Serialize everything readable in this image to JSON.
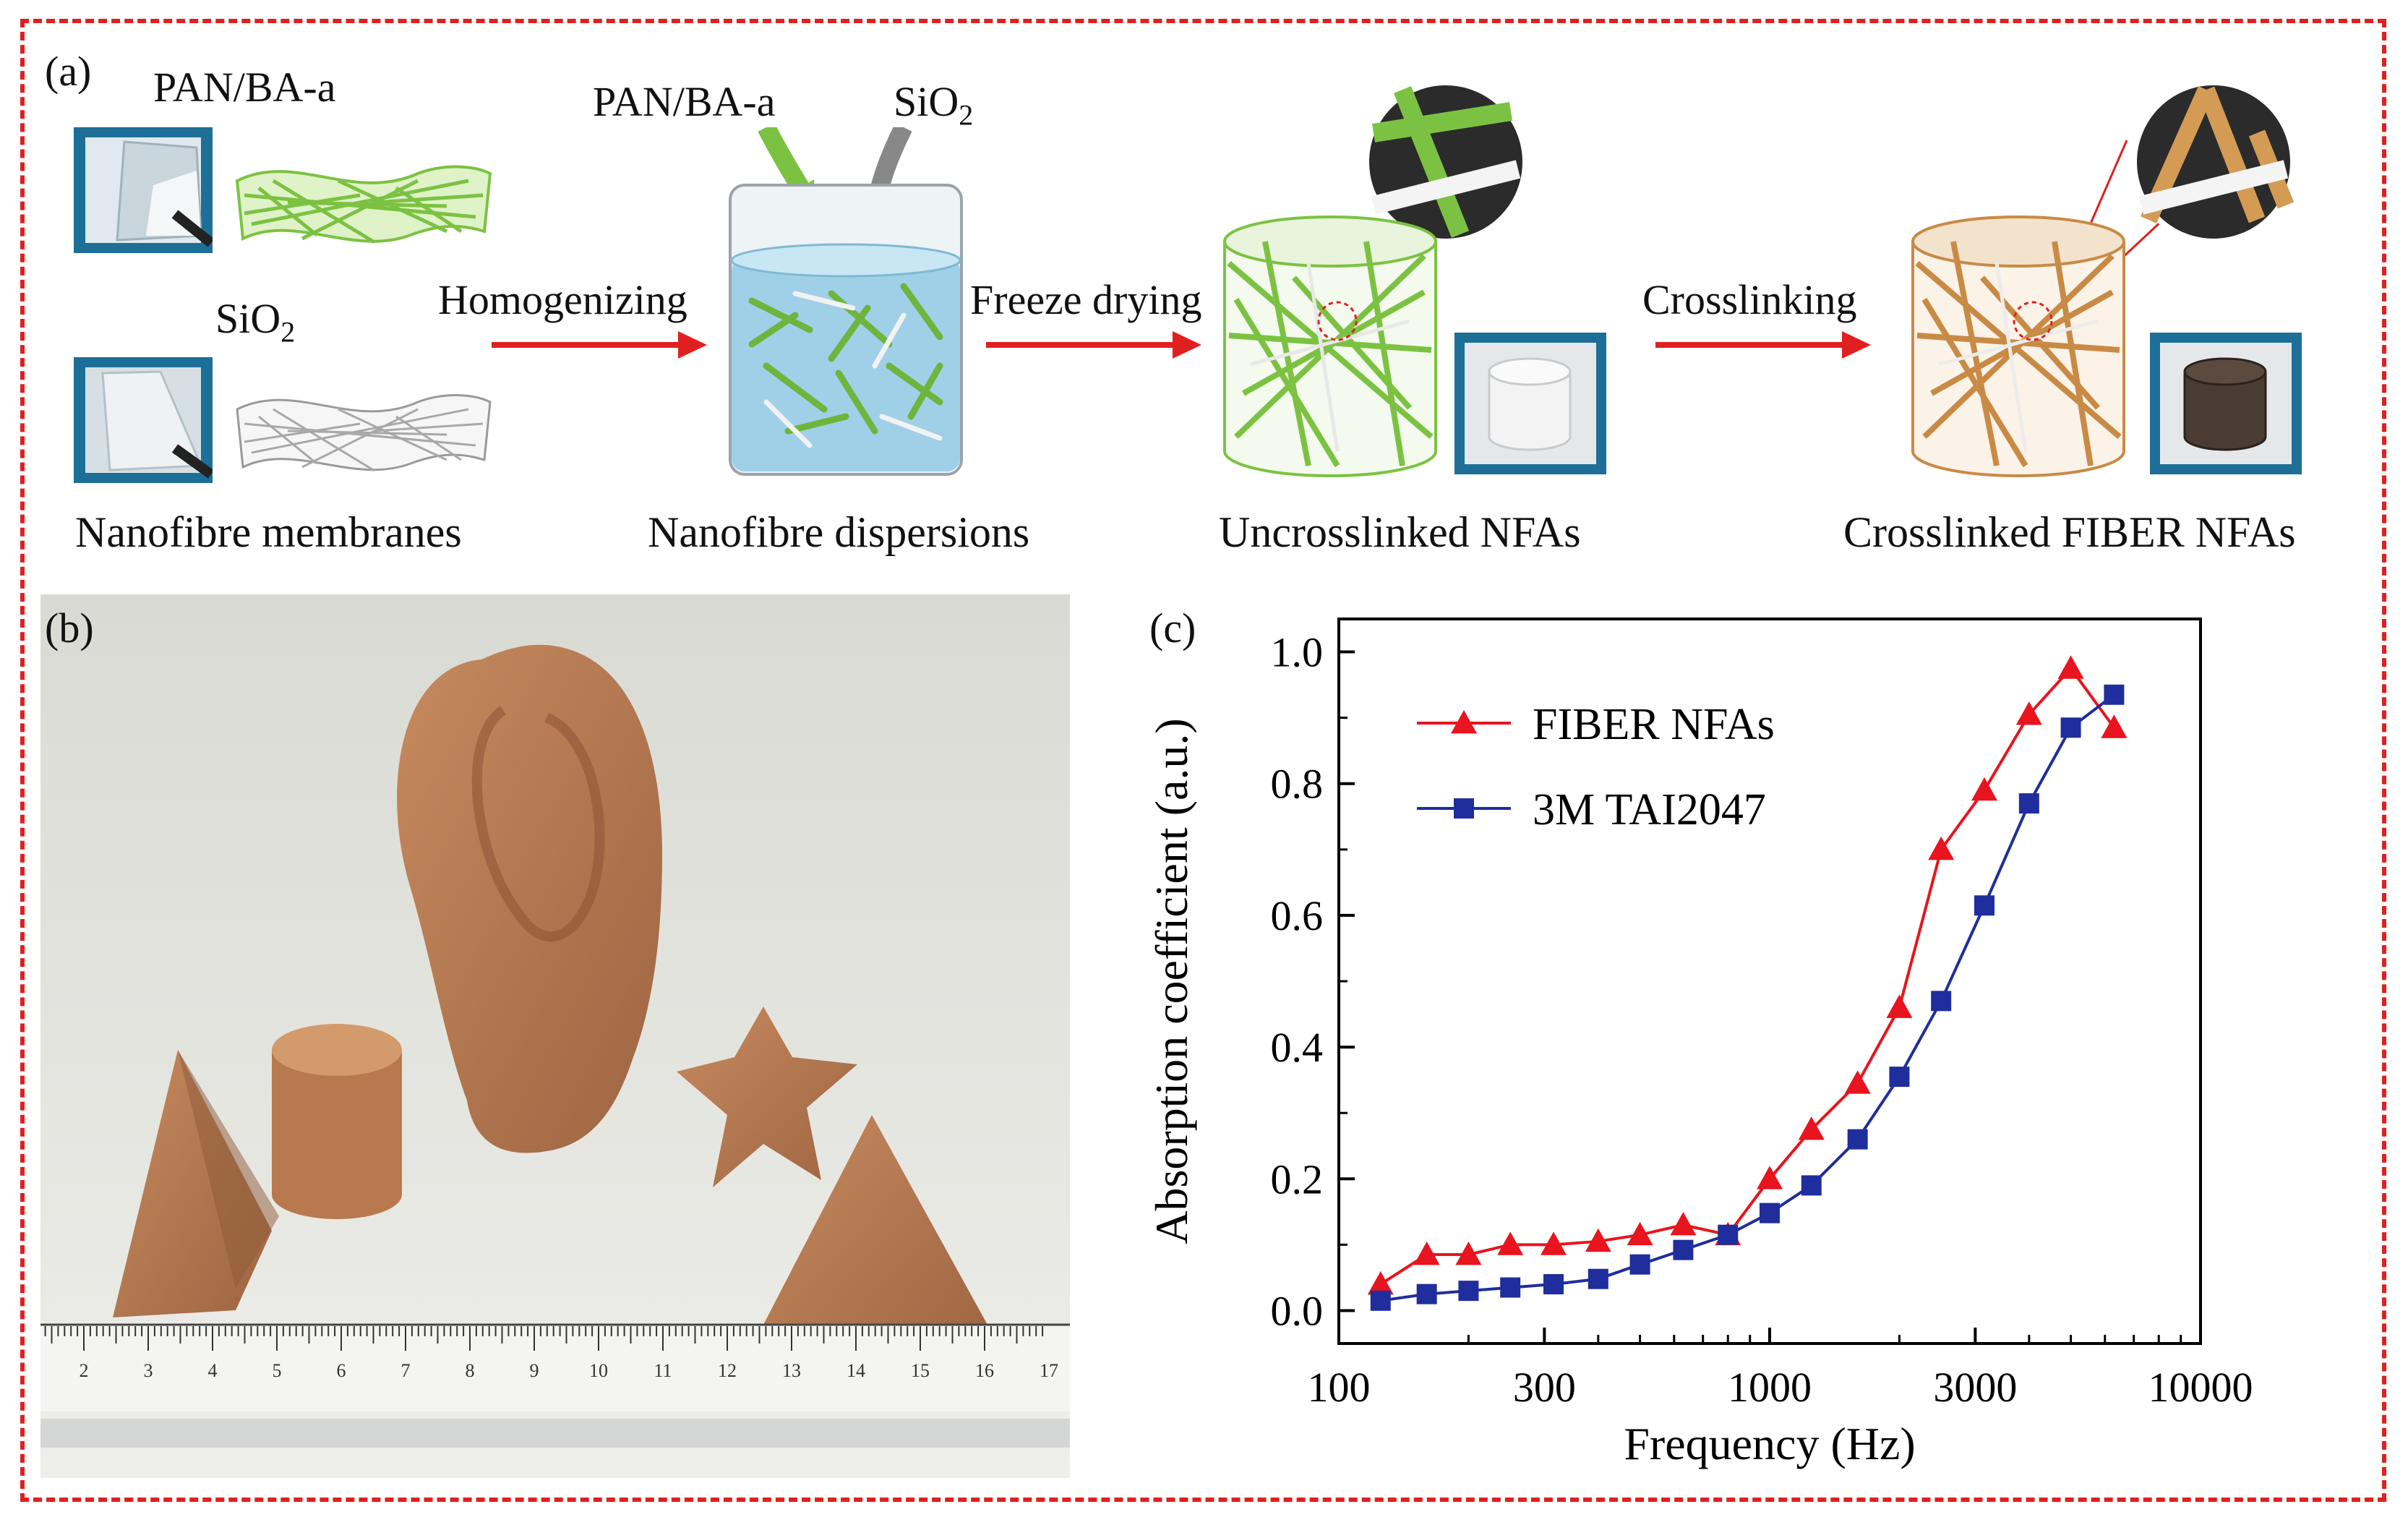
{
  "figure": {
    "panel_a": {
      "letter": "(a)",
      "labels": {
        "pan_ba_top": "PAN/BA-a",
        "sio2_left": "SiO",
        "sio2_left_sub": "2",
        "pan_ba_beaker": "PAN/BA-a",
        "sio2_beaker": "SiO",
        "sio2_beaker_sub": "2"
      },
      "steps": {
        "homogenizing": "Homogenizing",
        "freeze_drying": "Freeze drying",
        "crosslinking": "Crosslinking"
      },
      "captions": {
        "membranes": "Nanofibre membranes",
        "dispersions": "Nanofibre dispersions",
        "uncrosslinked": "Uncrosslinked NFAs",
        "crosslinked": "Crosslinked FIBER NFAs"
      }
    },
    "panel_b": {
      "letter": "(b)",
      "ruler_ticks": [
        "2",
        "3",
        "4",
        "5",
        "6",
        "7",
        "8",
        "9",
        "10",
        "11",
        "12",
        "13",
        "14",
        "15",
        "16",
        "17"
      ]
    },
    "panel_c": {
      "letter": "(c)"
    },
    "colors": {
      "border": "#e02020",
      "arrow": "#e02020",
      "fiber_green": "#7cc242",
      "fiber_brown": "#c98a45"
    }
  },
  "chart_data": {
    "type": "line",
    "title": "",
    "xlabel": "Frequency (Hz)",
    "ylabel": "Absorption coefficient (a.u.)",
    "xscale": "log",
    "xlim": [
      100,
      10000
    ],
    "ylim": [
      -0.05,
      1.05
    ],
    "xticks": [
      100,
      300,
      1000,
      3000,
      10000
    ],
    "xtick_labels": [
      "100",
      "300",
      "1000",
      "3000",
      "10000"
    ],
    "yticks": [
      0.0,
      0.2,
      0.4,
      0.6,
      0.8,
      1.0
    ],
    "ytick_labels": [
      "0.0",
      "0.2",
      "0.4",
      "0.6",
      "0.8",
      "1.0"
    ],
    "legend_position": "top-left",
    "series": [
      {
        "name": "FIBER NFAs",
        "color": "#e8141e",
        "marker": "triangle",
        "x": [
          125,
          160,
          200,
          250,
          315,
          400,
          500,
          630,
          800,
          1000,
          1250,
          1600,
          2000,
          2500,
          3150,
          4000,
          5000,
          6300
        ],
        "y": [
          0.04,
          0.085,
          0.085,
          0.1,
          0.1,
          0.105,
          0.115,
          0.13,
          0.115,
          0.2,
          0.275,
          0.345,
          0.46,
          0.7,
          0.79,
          0.905,
          0.975,
          0.885
        ]
      },
      {
        "name": "3M TAI2047",
        "color": "#1f2e9c",
        "marker": "square",
        "x": [
          125,
          160,
          200,
          250,
          315,
          400,
          500,
          630,
          800,
          1000,
          1250,
          1600,
          2000,
          2500,
          3150,
          4000,
          5000,
          6300
        ],
        "y": [
          0.015,
          0.025,
          0.03,
          0.035,
          0.04,
          0.048,
          0.07,
          0.092,
          0.115,
          0.148,
          0.19,
          0.26,
          0.355,
          0.47,
          0.615,
          0.77,
          0.885,
          0.935
        ]
      }
    ]
  }
}
